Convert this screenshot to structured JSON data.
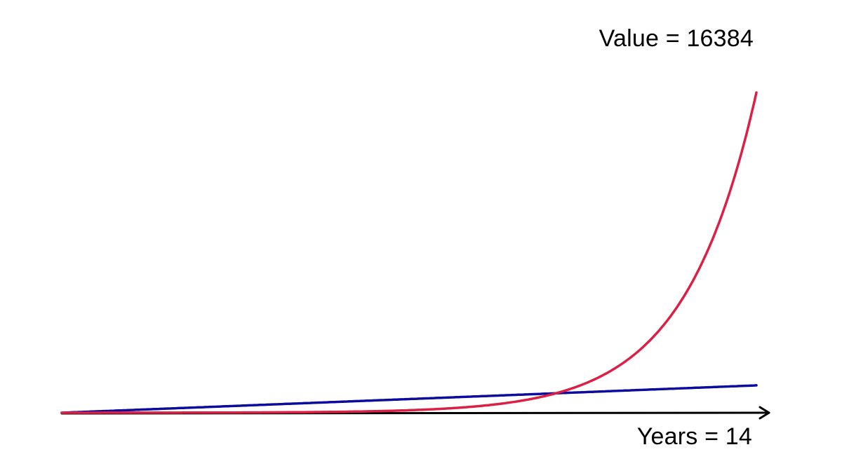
{
  "chart_data": {
    "type": "line",
    "title": "",
    "xlabel": "",
    "ylabel": "",
    "xlim": [
      0,
      14
    ],
    "ylim": [
      0,
      16384
    ],
    "grid": false,
    "legend": "none",
    "annotations": {
      "value": "Value = 16384",
      "years": "Years = 14"
    },
    "x": [
      0,
      1,
      2,
      3,
      4,
      5,
      6,
      7,
      8,
      9,
      10,
      11,
      12,
      13,
      14
    ],
    "series": [
      {
        "color": "#0b0b9e",
        "values": [
          0,
          100,
          200,
          300,
          400,
          500,
          600,
          700,
          800,
          900,
          1000,
          1100,
          1200,
          1300,
          1400
        ]
      },
      {
        "color": "#dc1f45",
        "values": [
          1,
          2,
          4,
          8,
          16,
          32,
          64,
          128,
          256,
          512,
          1024,
          2048,
          4096,
          8192,
          16384
        ]
      }
    ],
    "axis_color": "#000000"
  }
}
